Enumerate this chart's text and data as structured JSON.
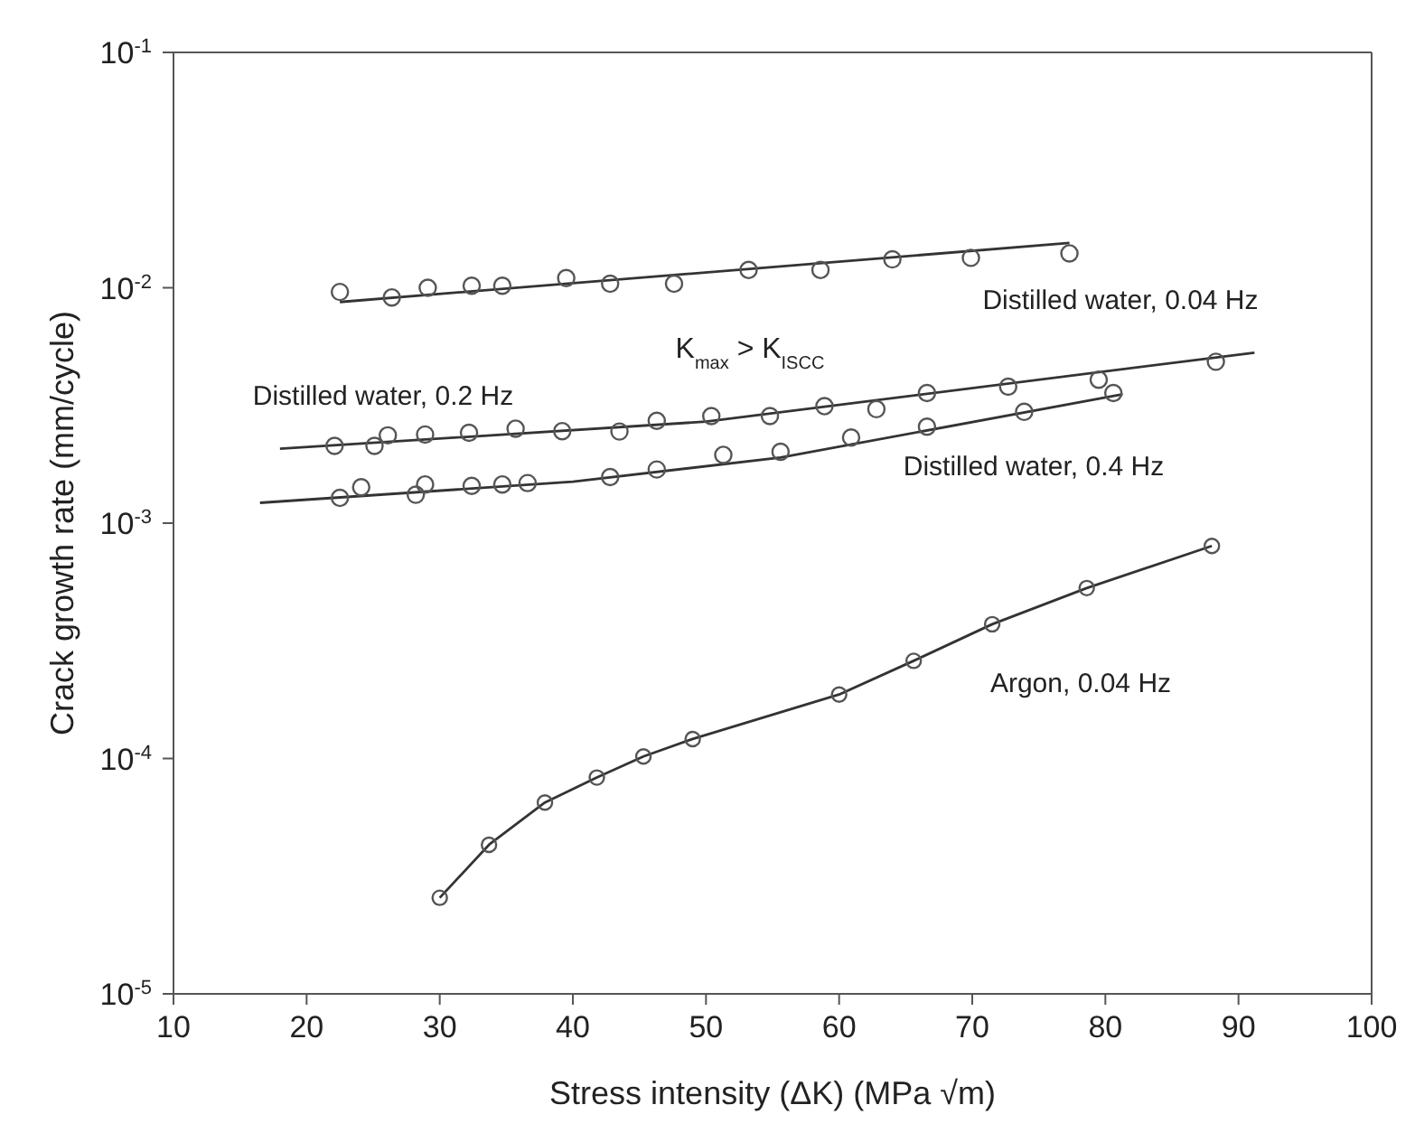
{
  "chart_data": {
    "type": "scatter",
    "xlabel": "Stress intensity (ΔK) (MPa √m)",
    "ylabel": "Crack growth rate (mm/cycle)",
    "log": "y",
    "grid": false,
    "legend": false,
    "xlim": [
      10,
      100
    ],
    "xticks": [
      10,
      20,
      30,
      40,
      50,
      60,
      70,
      80,
      90,
      100
    ],
    "ylim": [
      1e-05,
      0.1
    ],
    "yticks": [
      {
        "value": 1e-05,
        "label": "10$^{-5}$"
      },
      {
        "value": 0.0001,
        "label": "10$^{-4}$"
      },
      {
        "value": 0.001,
        "label": "10$^{-3}$"
      },
      {
        "value": 0.01,
        "label": "10$^{-2}$"
      },
      {
        "value": 0.1,
        "label": "10$^{-1}$"
      }
    ],
    "series": [
      {
        "name": "Distilled water, 0.04 Hz",
        "marker": "circle",
        "color": "#555555",
        "x": [
          22.5,
          26.4,
          29.1,
          32.4,
          34.7,
          39.5,
          42.8,
          47.6,
          53.2,
          58.6,
          64.0,
          69.9,
          77.3
        ],
        "values": [
          0.0096,
          0.0091,
          0.01,
          0.0102,
          0.0102,
          0.011,
          0.0104,
          0.0104,
          0.0119,
          0.0119,
          0.0132,
          0.0134,
          0.014
        ]
      },
      {
        "type": "line",
        "marker": "none",
        "color": "#333333",
        "x": [
          22.5,
          77.3
        ],
        "values": [
          0.0087,
          0.0155
        ]
      },
      {
        "name": "Distilled water, 0.2 Hz",
        "marker": "circle",
        "color": "#555555",
        "x": [
          22.1,
          25.1,
          26.1,
          28.9,
          32.2,
          35.7,
          39.2,
          43.5,
          46.3,
          50.4,
          54.8,
          58.9,
          62.8,
          66.6,
          72.7,
          79.5,
          88.3
        ],
        "values": [
          0.00213,
          0.00213,
          0.00236,
          0.00238,
          0.00242,
          0.00252,
          0.00246,
          0.00245,
          0.00272,
          0.00285,
          0.00285,
          0.00314,
          0.00305,
          0.00357,
          0.0038,
          0.00407,
          0.00485
        ]
      },
      {
        "type": "line",
        "marker": "none",
        "color": "#333333",
        "x": [
          18.0,
          50,
          91.2
        ],
        "values": [
          0.00207,
          0.0027,
          0.0053
        ]
      },
      {
        "name": "Distilled water, 0.4 Hz",
        "marker": "circle",
        "color": "#555555",
        "x": [
          22.5,
          24.1,
          28.2,
          28.9,
          32.4,
          34.7,
          36.6,
          42.8,
          46.3,
          51.3,
          55.6,
          60.9,
          66.6,
          73.9,
          80.6
        ],
        "values": [
          0.00128,
          0.00142,
          0.00132,
          0.00146,
          0.00144,
          0.00146,
          0.00148,
          0.00157,
          0.00169,
          0.00195,
          0.00201,
          0.00231,
          0.00257,
          0.00297,
          0.00357
        ]
      },
      {
        "type": "line",
        "marker": "none",
        "color": "#333333",
        "x": [
          16.5,
          40,
          55.6,
          81.3
        ],
        "values": [
          0.00122,
          0.0015,
          0.0019,
          0.00353
        ]
      },
      {
        "name": "Argon, 0.04 Hz",
        "type": "line",
        "marker": "circle",
        "color": "#333333",
        "x": [
          30.0,
          33.7,
          37.9,
          41.8,
          45.3,
          49.0,
          60.0,
          65.6,
          71.5,
          78.6,
          88.0
        ],
        "values": [
          2.56e-05,
          4.3e-05,
          6.5e-05,
          8.3e-05,
          0.000102,
          0.000121,
          0.000187,
          0.00026,
          0.000372,
          0.00053,
          0.0008
        ]
      }
    ],
    "annotations": [
      "K$_{max}$ > K$_{ISCC}$"
    ]
  }
}
